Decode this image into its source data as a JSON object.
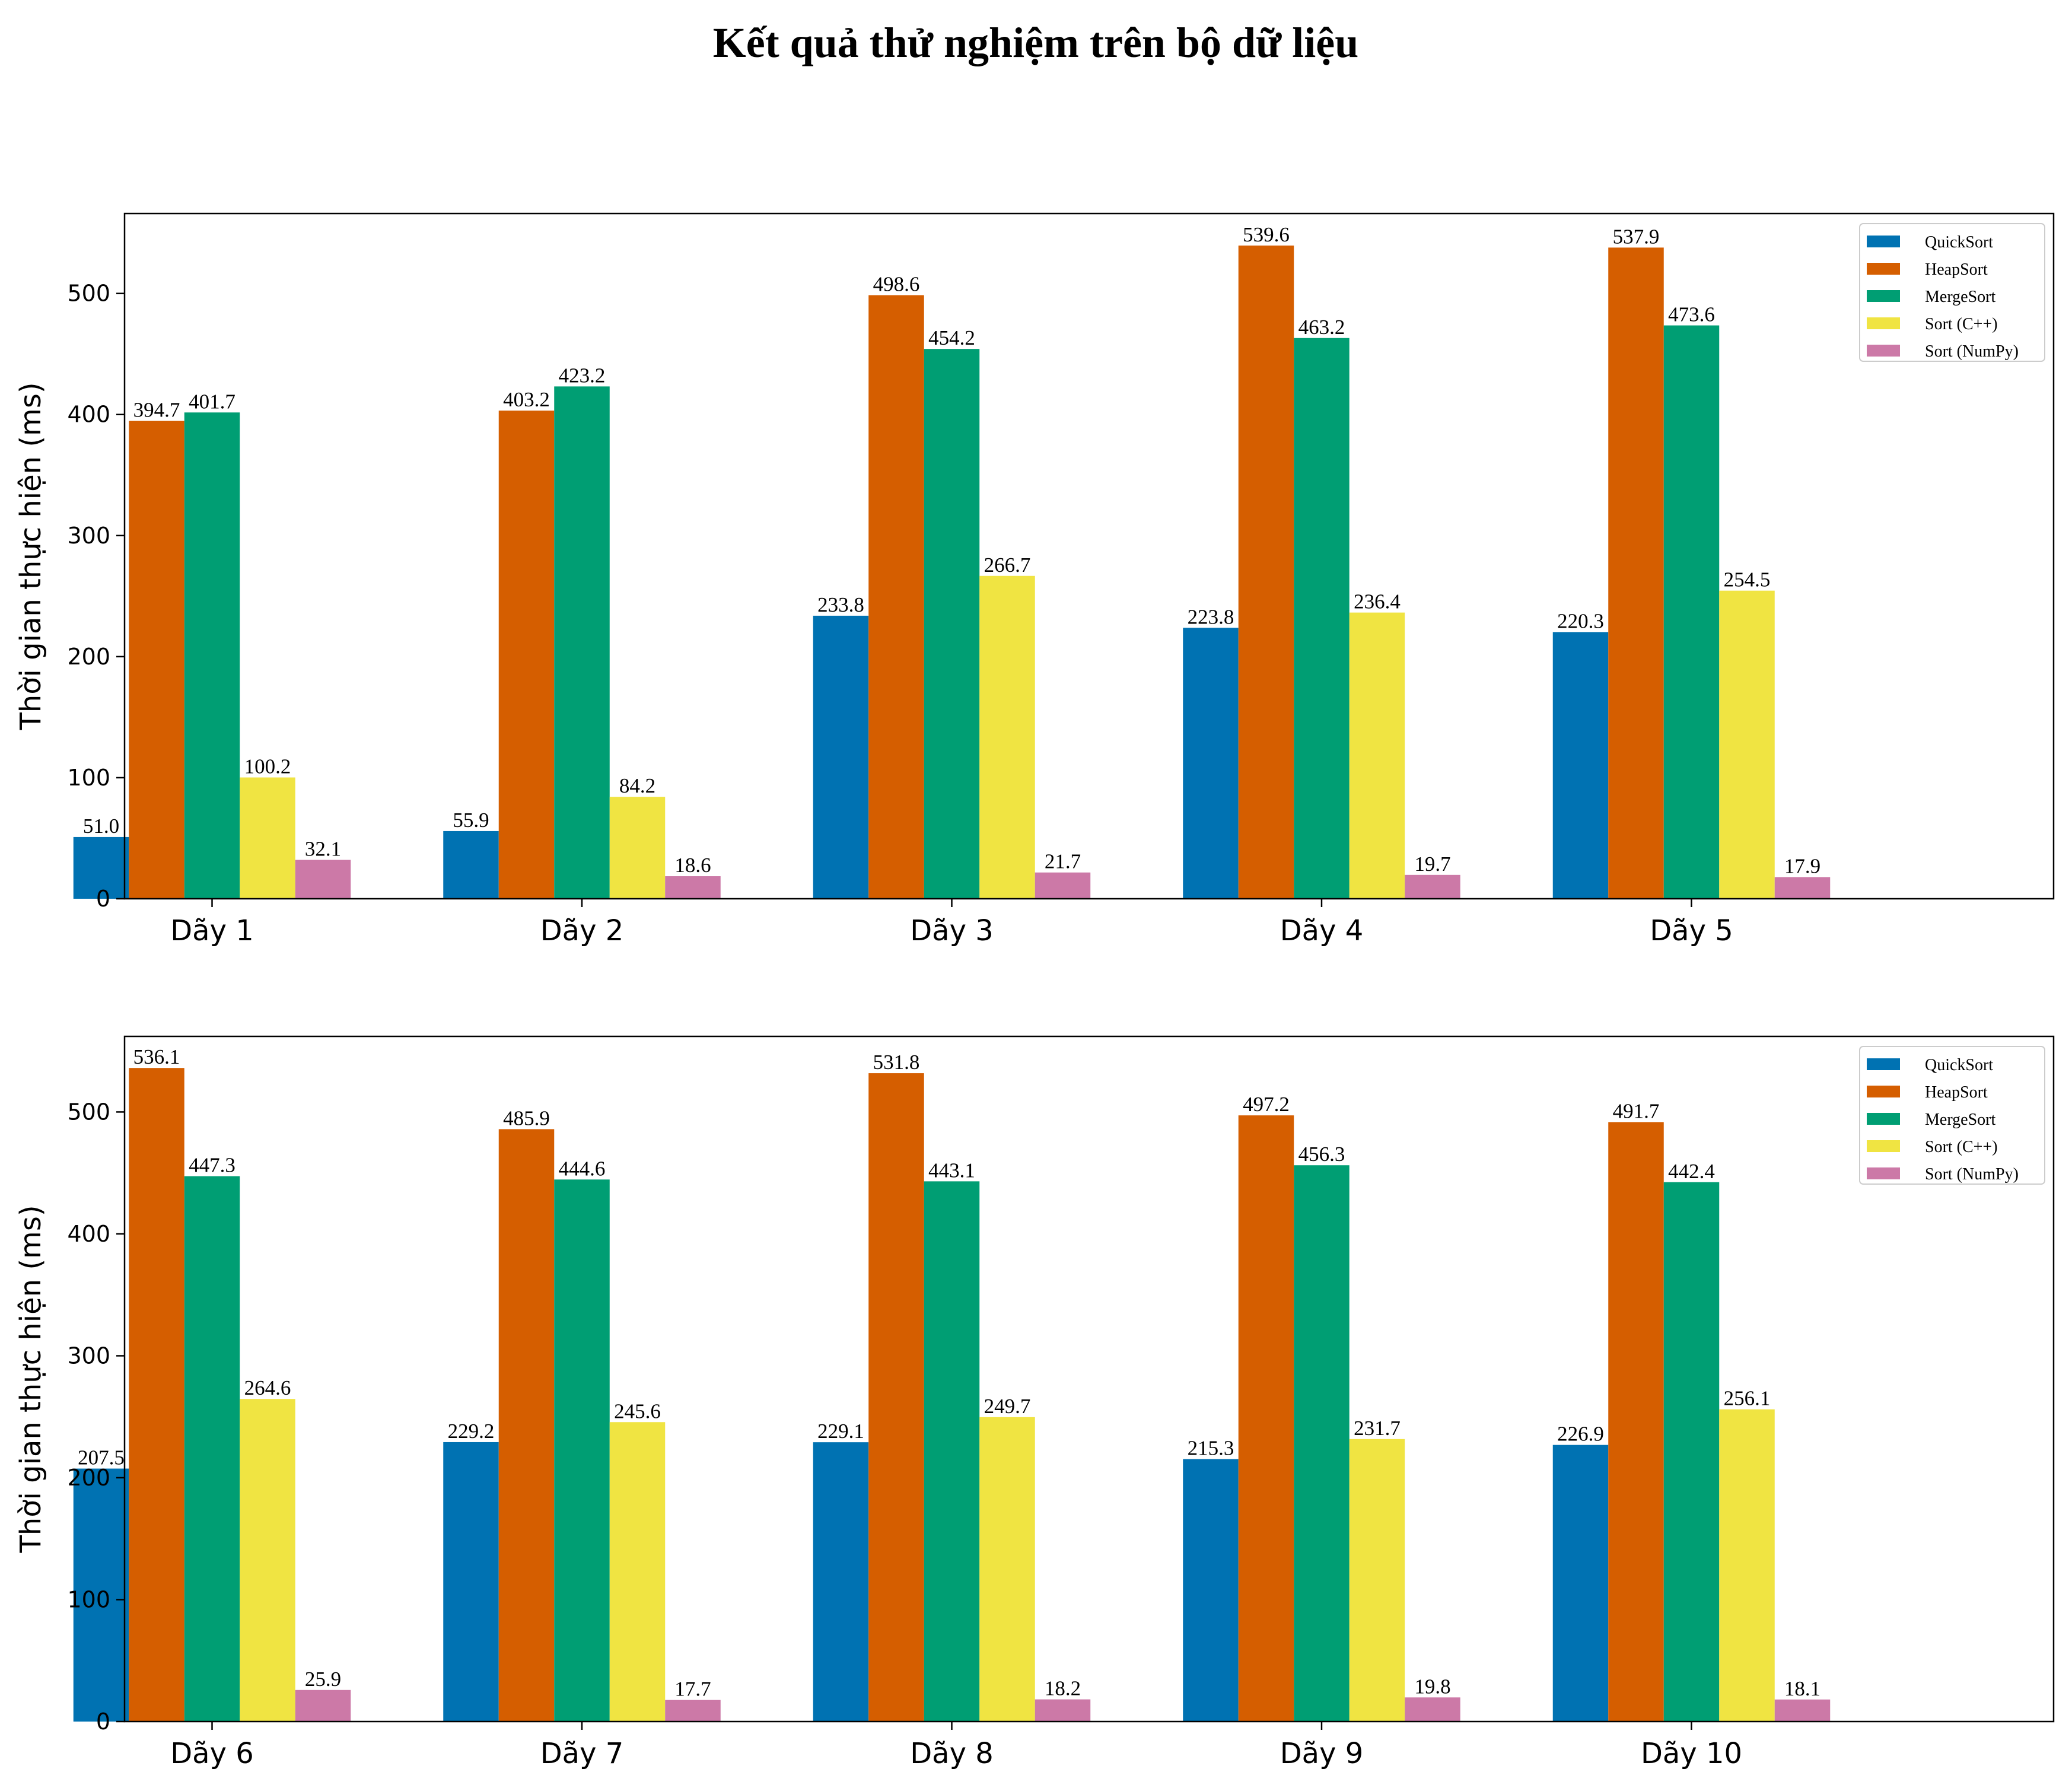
{
  "title": "Kết quả thử nghiệm trên bộ dữ liệu",
  "series_colors": [
    "#0072b2",
    "#d55e00",
    "#009e73",
    "#f0e442",
    "#cc79a7"
  ],
  "chart_data": [
    {
      "type": "bar",
      "title": "",
      "xlabel": "",
      "ylabel": "Thời gian thực hiện (ms)",
      "ylim": [
        0,
        566
      ],
      "yticks": [
        0,
        100,
        200,
        300,
        400,
        500
      ],
      "categories": [
        "Dãy 1",
        "Dãy 2",
        "Dãy 3",
        "Dãy 4",
        "Dãy 5"
      ],
      "legend_position": "top-right",
      "series": [
        {
          "name": "QuickSort",
          "values": [
            51.0,
            55.9,
            233.8,
            223.8,
            220.3
          ]
        },
        {
          "name": "HeapSort",
          "values": [
            394.7,
            403.2,
            498.6,
            539.6,
            537.9
          ]
        },
        {
          "name": "MergeSort",
          "values": [
            401.7,
            423.2,
            454.2,
            463.2,
            473.6
          ]
        },
        {
          "name": "Sort (C++)",
          "values": [
            100.2,
            84.2,
            266.7,
            236.4,
            254.5
          ]
        },
        {
          "name": "Sort (NumPy)",
          "values": [
            32.1,
            18.6,
            21.7,
            19.7,
            17.9
          ]
        }
      ]
    },
    {
      "type": "bar",
      "title": "",
      "xlabel": "",
      "ylabel": "Thời gian thực hiện (ms)",
      "ylim": [
        0,
        562
      ],
      "yticks": [
        0,
        100,
        200,
        300,
        400,
        500
      ],
      "categories": [
        "Dãy 6",
        "Dãy 7",
        "Dãy 8",
        "Dãy 9",
        "Dãy 10"
      ],
      "legend_position": "top-right",
      "series": [
        {
          "name": "QuickSort",
          "values": [
            207.5,
            229.2,
            229.1,
            215.3,
            226.9
          ]
        },
        {
          "name": "HeapSort",
          "values": [
            536.1,
            485.9,
            531.8,
            497.2,
            491.7
          ]
        },
        {
          "name": "MergeSort",
          "values": [
            447.3,
            444.6,
            443.1,
            456.3,
            442.4
          ]
        },
        {
          "name": "Sort (C++)",
          "values": [
            264.6,
            245.6,
            249.7,
            231.7,
            256.1
          ]
        },
        {
          "name": "Sort (NumPy)",
          "values": [
            25.9,
            17.7,
            18.2,
            19.8,
            18.1
          ]
        }
      ]
    }
  ]
}
